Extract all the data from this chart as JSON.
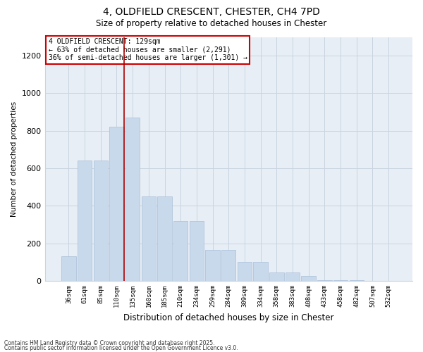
{
  "title_line1": "4, OLDFIELD CRESCENT, CHESTER, CH4 7PD",
  "title_line2": "Size of property relative to detached houses in Chester",
  "xlabel": "Distribution of detached houses by size in Chester",
  "ylabel": "Number of detached properties",
  "bar_labels": [
    "36sqm",
    "61sqm",
    "85sqm",
    "110sqm",
    "135sqm",
    "160sqm",
    "185sqm",
    "210sqm",
    "234sqm",
    "259sqm",
    "284sqm",
    "309sqm",
    "334sqm",
    "358sqm",
    "383sqm",
    "408sqm",
    "433sqm",
    "458sqm",
    "482sqm",
    "507sqm",
    "532sqm"
  ],
  "bar_values": [
    130,
    640,
    640,
    820,
    870,
    450,
    450,
    320,
    320,
    165,
    165,
    100,
    100,
    45,
    45,
    25,
    5,
    5,
    5,
    2,
    2
  ],
  "bar_color": "#c9d9ec",
  "bar_edge_color": "#a8bfd8",
  "grid_color": "#c8d4e0",
  "background_color": "#e8eef5",
  "vline_color": "#aa0000",
  "annotation_text": "4 OLDFIELD CRESCENT: 129sqm\n← 63% of detached houses are smaller (2,291)\n36% of semi-detached houses are larger (1,301) →",
  "annotation_box_edge_color": "#cc0000",
  "ylim": [
    0,
    1300
  ],
  "yticks": [
    0,
    200,
    400,
    600,
    800,
    1000,
    1200
  ],
  "footnote1": "Contains HM Land Registry data © Crown copyright and database right 2025.",
  "footnote2": "Contains public sector information licensed under the Open Government Licence v3.0."
}
